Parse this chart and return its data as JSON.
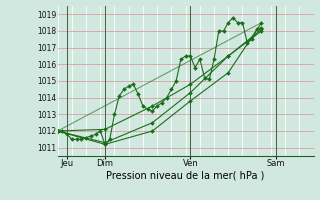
{
  "title": "",
  "xlabel": "Pression niveau de la mer( hPa )",
  "ylabel": "",
  "background_color": "#d0e8e0",
  "plot_bg_color": "#d0e8e0",
  "grid_color_h": "#d8a0a0",
  "grid_color_v": "#ffffff",
  "dark_vline_color": "#406040",
  "line_color": "#1a6e1a",
  "marker_color": "#1a6e1a",
  "ylim": [
    1010.5,
    1019.5
  ],
  "yticks": [
    1011,
    1012,
    1013,
    1014,
    1015,
    1016,
    1017,
    1018,
    1019
  ],
  "xlim": [
    0,
    216
  ],
  "xtick_positions": [
    8,
    40,
    112,
    184
  ],
  "xtick_labels": [
    "Jeu",
    "Dim",
    "Ven",
    "Sam"
  ],
  "vline_positions": [
    8,
    40,
    112,
    184
  ],
  "n_vlines": 18,
  "series": [
    [
      0,
      1012.0,
      4,
      1012.0,
      8,
      1011.8,
      12,
      1011.5,
      16,
      1011.5,
      20,
      1011.5,
      24,
      1011.6,
      28,
      1011.7,
      32,
      1011.8,
      36,
      1012.0,
      40,
      1011.2,
      44,
      1011.5,
      48,
      1013.0,
      52,
      1014.1,
      56,
      1014.5,
      60,
      1014.7,
      64,
      1014.8,
      68,
      1014.2,
      72,
      1013.5,
      76,
      1013.3,
      80,
      1013.2,
      84,
      1013.5,
      88,
      1013.7,
      92,
      1014.0,
      96,
      1014.5,
      100,
      1015.0,
      104,
      1016.3,
      108,
      1016.5,
      112,
      1016.5,
      116,
      1015.8,
      120,
      1016.3,
      124,
      1015.2,
      128,
      1015.1,
      132,
      1016.3,
      136,
      1018.0,
      140,
      1018.0,
      144,
      1018.5,
      148,
      1018.8,
      152,
      1018.5,
      156,
      1018.5,
      160,
      1017.3,
      164,
      1017.5,
      168,
      1018.1,
      172,
      1018.2
    ],
    [
      0,
      1012.0,
      40,
      1012.1,
      80,
      1013.5,
      112,
      1014.8,
      144,
      1016.5,
      172,
      1018.0
    ],
    [
      0,
      1012.0,
      40,
      1011.2,
      80,
      1012.0,
      112,
      1013.8,
      144,
      1015.5,
      172,
      1018.5
    ],
    [
      0,
      1012.0,
      40,
      1011.3,
      80,
      1012.5,
      112,
      1014.3,
      144,
      1016.5,
      172,
      1018.1
    ]
  ],
  "trend_line": [
    0,
    1012.0,
    172,
    1018.5
  ]
}
